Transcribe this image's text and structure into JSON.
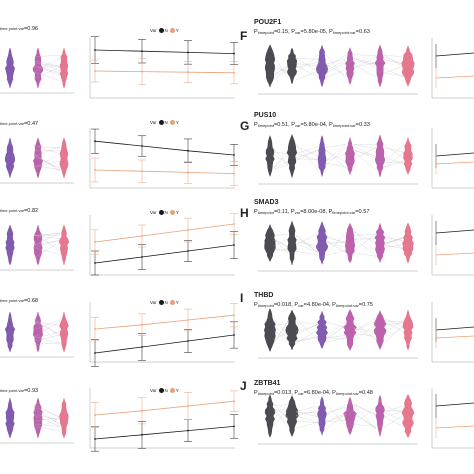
{
  "colors": {
    "violin_dark": "#2b2b33",
    "violin_purple": "#6a3ea1",
    "violin_magenta": "#b0479d",
    "violin_pink": "#e0607a",
    "line_v0": "#1a1a1a",
    "line_v1": "#e8a07a",
    "connector": "#b9b9b9"
  },
  "legend": {
    "title": "Var",
    "levels": [
      "N",
      "Y"
    ]
  },
  "left_column": {
    "stat_tails": [
      "=0.96",
      "=0.47",
      "=0.82",
      "=0.68",
      "=0.93"
    ],
    "stat_partial_labels": [
      "time point:var",
      "time point:var",
      "time point:var",
      "time point:var",
      "time point:var"
    ]
  },
  "right_column": {
    "panels": [
      {
        "letter": "F",
        "gene": "POU2F1",
        "p_timepoint": "0.15",
        "p_var": "5.80e-05",
        "p_interaction": "0.63"
      },
      {
        "letter": "G",
        "gene": "PUS10",
        "p_timepoint": "0.51",
        "p_var": "5.80e-04",
        "p_interaction": "0.33"
      },
      {
        "letter": "H",
        "gene": "SMAD3",
        "p_timepoint": "0.11",
        "p_var": "8.00e-08",
        "p_interaction": "0.57"
      },
      {
        "letter": "I",
        "gene": "THBD",
        "p_timepoint": "0.018",
        "p_var": "4.80e-04",
        "p_interaction": "0.75"
      },
      {
        "letter": "J",
        "gene": "ZBTB41",
        "p_timepoint": "0.013",
        "p_var": "6.80e-04",
        "p_interaction": "0.48"
      }
    ],
    "sub_labels": {
      "timepoint": "timepoint",
      "var": "var",
      "interaction": "timepoint:var"
    }
  },
  "chart_data": [
    {
      "type": "line",
      "panel": "row1-left",
      "series": [
        {
          "name": "N",
          "values": [
            0.8,
            0.78,
            0.76,
            0.74
          ]
        },
        {
          "name": "Y",
          "values": [
            0.45,
            0.44,
            0.43,
            0.42
          ]
        }
      ]
    },
    {
      "type": "line",
      "panel": "row2-left",
      "series": [
        {
          "name": "N",
          "values": [
            0.78,
            0.7,
            0.62,
            0.55
          ]
        },
        {
          "name": "Y",
          "values": [
            0.3,
            0.28,
            0.26,
            0.24
          ]
        }
      ]
    },
    {
      "type": "line",
      "panel": "row3-left",
      "series": [
        {
          "name": "N",
          "values": [
            0.2,
            0.3,
            0.4,
            0.5
          ]
        },
        {
          "name": "Y",
          "values": [
            0.55,
            0.65,
            0.75,
            0.85
          ]
        }
      ]
    },
    {
      "type": "line",
      "panel": "row4-left",
      "series": [
        {
          "name": "N",
          "values": [
            0.15,
            0.25,
            0.35,
            0.45
          ]
        },
        {
          "name": "Y",
          "values": [
            0.55,
            0.62,
            0.7,
            0.78
          ]
        }
      ]
    },
    {
      "type": "line",
      "panel": "row5-left",
      "series": [
        {
          "name": "N",
          "values": [
            0.15,
            0.22,
            0.29,
            0.36
          ]
        },
        {
          "name": "Y",
          "values": [
            0.55,
            0.62,
            0.7,
            0.78
          ]
        }
      ]
    }
  ]
}
